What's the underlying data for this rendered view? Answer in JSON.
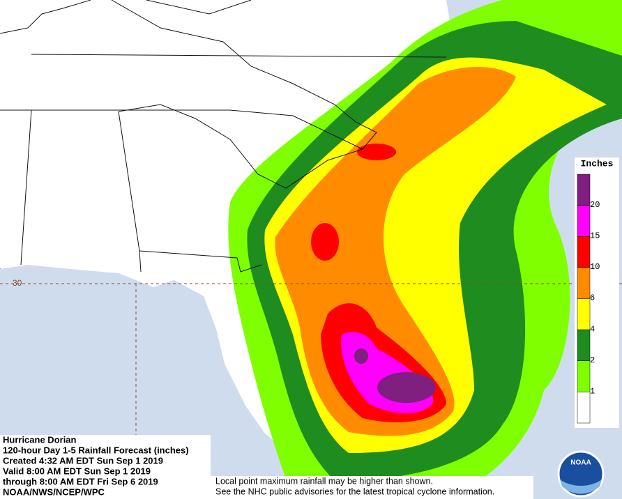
{
  "map": {
    "latitude_label": "30"
  },
  "legend": {
    "title": "Inches",
    "ticks": [
      20,
      15,
      10,
      6,
      4,
      2,
      1
    ],
    "colors": [
      "#7f1f7f",
      "#ff00ff",
      "#ff0000",
      "#ff8c00",
      "#ffff00",
      "#1e8c1e",
      "#7fff00",
      "#ffffff"
    ]
  },
  "info": {
    "lines": [
      "Hurricane Dorian",
      "120-hour Day 1-5 Rainfall Forecast (inches)",
      "Created 4:32 AM EDT Sun Sep 1 2019",
      "Valid 8:00 AM EDT Sun Sep 1 2019",
      "through 8:00 AM EDT Fri Sep 6 2019",
      "NOAA/NWS/NCEP/WPC"
    ]
  },
  "notice": {
    "lines": [
      "Local point maximum rainfall may be higher than shown.",
      "See the NHC public advisories for the latest tropical cyclone information."
    ]
  },
  "logo": {
    "text": "NOAA"
  }
}
